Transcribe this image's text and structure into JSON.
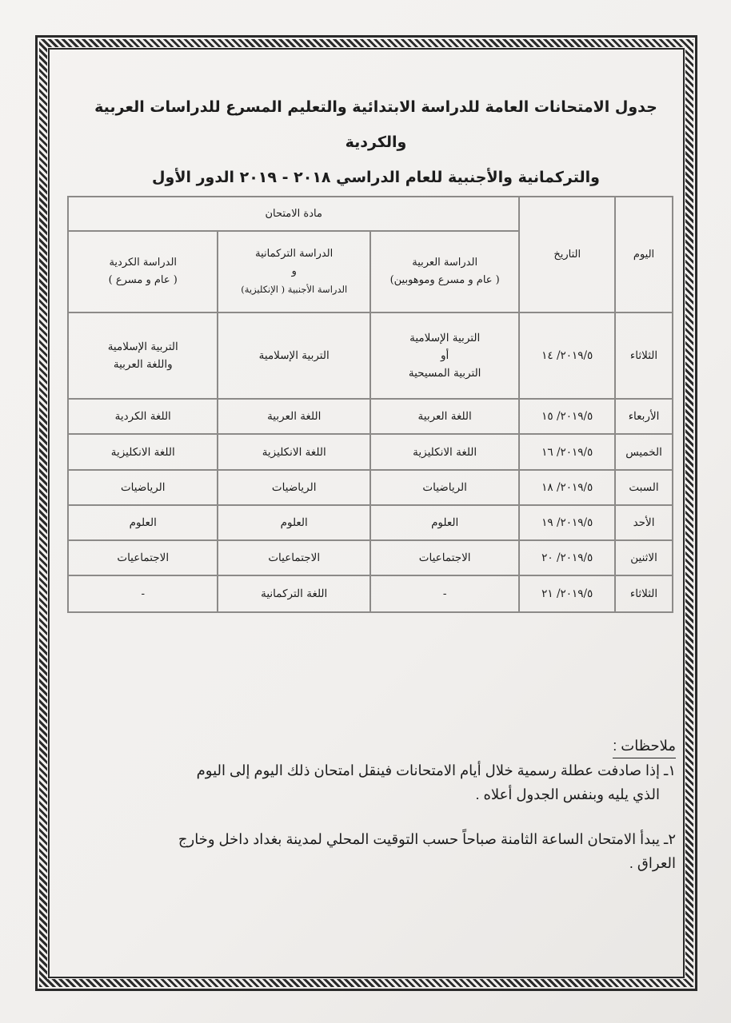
{
  "title": {
    "line1": "جدول الامتحانات العامة للدراسة الابتدائية والتعليم المسرع للدراسات العربية والكردية",
    "line2": "والتركمانية والأجنبية للعام الدراسي ٢٠١٨ - ٢٠١٩ الدور الأول"
  },
  "table": {
    "headers": {
      "day": "اليوم",
      "date": "التاريخ",
      "subject": "مادة الامتحان",
      "arabic": {
        "line1": "الدراسة العربية",
        "line2": "( عام و مسرع وموهوبين)"
      },
      "turkmen": {
        "line1": "الدراسة التركمانية",
        "line2": "و",
        "line3": "الدراسة الأجنبية ( الإنكليزية)"
      },
      "kurdish": {
        "line1": "الدراسة الكردية",
        "line2": "( عام و مسرع )"
      }
    },
    "rows": [
      {
        "day": "الثلاثاء",
        "date": "٢٠١٩/٥/ ١٤",
        "arabic": {
          "line1": "التربية الإسلامية",
          "line2": "أو",
          "line3": "التربية المسيحية"
        },
        "turkmen": "التربية الإسلامية",
        "kurdish": {
          "line1": "التربية الإسلامية",
          "line2": "واللغة العربية"
        }
      },
      {
        "day": "الأربعاء",
        "date": "٢٠١٩/٥/ ١٥",
        "arabic": "اللغة العربية",
        "turkmen": "اللغة العربية",
        "kurdish": "اللغة الكردية"
      },
      {
        "day": "الخميس",
        "date": "٢٠١٩/٥/ ١٦",
        "arabic": "اللغة الانكليزية",
        "turkmen": "اللغة الانكليزية",
        "kurdish": "اللغة الانكليزية"
      },
      {
        "day": "السبت",
        "date": "٢٠١٩/٥/ ١٨",
        "arabic": "الرياضيات",
        "turkmen": "الرياضيات",
        "kurdish": "الرياضيات"
      },
      {
        "day": "الأحد",
        "date": "٢٠١٩/٥/ ١٩",
        "arabic": "العلوم",
        "turkmen": "العلوم",
        "kurdish": "العلوم"
      },
      {
        "day": "الاثنين",
        "date": "٢٠١٩/٥/ ٢٠",
        "arabic": "الاجتماعيات",
        "turkmen": "الاجتماعيات",
        "kurdish": "الاجتماعيات"
      },
      {
        "day": "الثلاثاء",
        "date": "٢٠١٩/٥/ ٢١",
        "arabic": "-",
        "turkmen": "اللغة التركمانية",
        "kurdish": "-"
      }
    ]
  },
  "notes": {
    "title": "ملاحظات :",
    "items": [
      {
        "line1": "١ـ إذا صادفت عطلة رسمية خلال أيام الامتحانات فينقل امتحان ذلك اليوم إلى اليوم",
        "line2": "الذي يليه وبنفس الجدول أعلاه ."
      },
      {
        "line1": "٢ـ يبدأ الامتحان الساعة الثامنة صباحاً حسب التوقيت المحلي لمدينة بغداد داخل وخارج",
        "line2": "العراق ."
      }
    ]
  }
}
